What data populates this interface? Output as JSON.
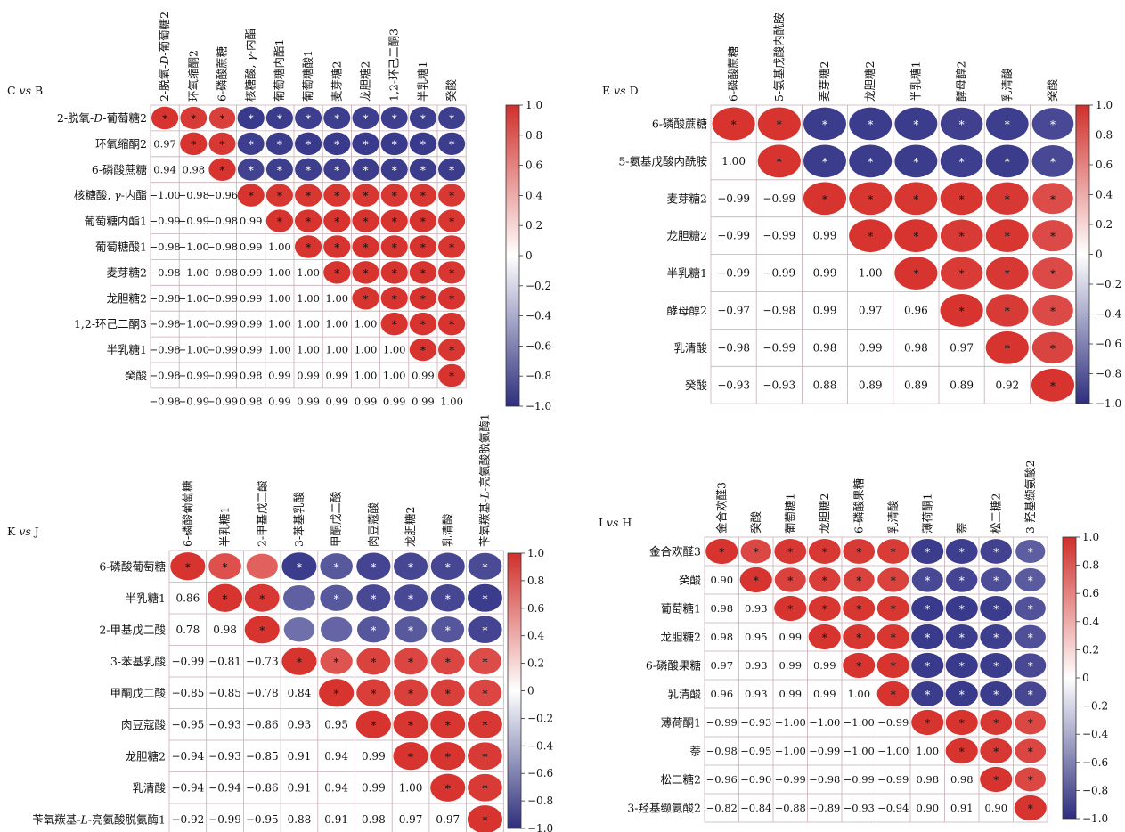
{
  "colors": {
    "positive": "#d7342f",
    "negative": "#3a3a8c",
    "grid": "#c9aeb4",
    "colorbar_stops": [
      "#d0302b",
      "#ffffff",
      "#2e2e7e"
    ]
  },
  "chart_data": [
    {
      "type": "heatmap",
      "title": "C vs B",
      "title_parts": [
        "C ",
        "vs",
        " B"
      ],
      "value_range": [
        -1.0,
        1.0
      ],
      "colorbar_ticks": [
        "1.0",
        "0.8",
        "0.6",
        "0.4",
        "0.2",
        "0",
        "−0.2",
        "−0.4",
        "−0.6",
        "−0.8",
        "−1.0"
      ],
      "labels": [
        {
          "parts": [
            {
              "t": "2-脱氧-"
            },
            {
              "t": "D",
              "i": true
            },
            {
              "t": "-葡萄糖2"
            }
          ]
        },
        {
          "parts": [
            {
              "t": "环氧缩酮2"
            }
          ]
        },
        {
          "parts": [
            {
              "t": "6-磷酸蔗糖"
            }
          ]
        },
        {
          "parts": [
            {
              "t": "核糖酸, "
            },
            {
              "t": "γ",
              "i": true
            },
            {
              "t": "-内酯"
            }
          ]
        },
        {
          "parts": [
            {
              "t": "葡萄糖内酯1"
            }
          ]
        },
        {
          "parts": [
            {
              "t": "葡萄糖酸1"
            }
          ]
        },
        {
          "parts": [
            {
              "t": "麦芽糖2"
            }
          ]
        },
        {
          "parts": [
            {
              "t": "龙胆糖2"
            }
          ]
        },
        {
          "parts": [
            {
              "t": "1,2-环己二酮3"
            }
          ]
        },
        {
          "parts": [
            {
              "t": "半乳糖1"
            }
          ]
        },
        {
          "parts": [
            {
              "t": "癸酸"
            }
          ]
        }
      ],
      "lower_labels": [
        [
          "0.97"
        ],
        [
          "0.94",
          "0.98"
        ],
        [
          "−1.00",
          "−0.98",
          "−0.96"
        ],
        [
          "−0.99",
          "−0.99",
          "−0.98",
          "0.99"
        ],
        [
          "−0.98",
          "−1.00",
          "−0.98",
          "0.99",
          "1.00"
        ],
        [
          "−0.98",
          "−1.00",
          "−0.98",
          "0.99",
          "1.00",
          "1.00"
        ],
        [
          "−0.98",
          "−1.00",
          "−0.99",
          "0.99",
          "1.00",
          "1.00",
          "1.00"
        ],
        [
          "−0.98",
          "−1.00",
          "−0.99",
          "0.99",
          "1.00",
          "1.00",
          "1.00",
          "1.00"
        ],
        [
          "−0.98",
          "−1.00",
          "−0.99",
          "0.99",
          "1.00",
          "1.00",
          "1.00",
          "1.00",
          "1.00"
        ],
        [
          "−0.98",
          "−0.99",
          "−0.99",
          "0.98",
          "0.99",
          "0.99",
          "0.99",
          "1.00",
          "1.00",
          "0.99"
        ],
        [
          "−0.98",
          "−0.99",
          "−0.99",
          "0.98",
          "0.99",
          "0.99",
          "0.99",
          "0.99",
          "0.99",
          "0.99",
          "1.00"
        ]
      ],
      "upper_star": [
        [
          true,
          true,
          true,
          true,
          true,
          true,
          true,
          true,
          true,
          true,
          true
        ],
        [
          true,
          true,
          true,
          true,
          true,
          true,
          true,
          true,
          true,
          true
        ],
        [
          true,
          true,
          true,
          true,
          true,
          true,
          true,
          true,
          true
        ],
        [
          true,
          true,
          true,
          true,
          true,
          true,
          true,
          true
        ],
        [
          true,
          true,
          true,
          true,
          true,
          true,
          true
        ],
        [
          true,
          true,
          true,
          true,
          true,
          true
        ],
        [
          true,
          true,
          true,
          true,
          true
        ],
        [
          true,
          true,
          true,
          true
        ],
        [
          true,
          true,
          true
        ],
        [
          true,
          true
        ],
        [
          true
        ]
      ]
    },
    {
      "type": "heatmap",
      "title": "E vs D",
      "title_parts": [
        "E ",
        "vs",
        " D"
      ],
      "value_range": [
        -1.0,
        1.0
      ],
      "colorbar_ticks": [
        "1.0",
        "0.8",
        "0.6",
        "0.4",
        "0.2",
        "0",
        "−0.2",
        "−0.4",
        "−0.6",
        "−0.8",
        "−1.0"
      ],
      "labels": [
        {
          "parts": [
            {
              "t": "6-磷酸蔗糖"
            }
          ]
        },
        {
          "parts": [
            {
              "t": "5-氨基戊酸内酰胺"
            }
          ]
        },
        {
          "parts": [
            {
              "t": "麦芽糖2"
            }
          ]
        },
        {
          "parts": [
            {
              "t": "龙胆糖2"
            }
          ]
        },
        {
          "parts": [
            {
              "t": "半乳糖1"
            }
          ]
        },
        {
          "parts": [
            {
              "t": "酵母醇2"
            }
          ]
        },
        {
          "parts": [
            {
              "t": "乳清酸"
            }
          ]
        },
        {
          "parts": [
            {
              "t": "癸酸"
            }
          ]
        }
      ],
      "lower_labels": [
        [
          "1.00"
        ],
        [
          "−0.99",
          "−0.99"
        ],
        [
          "−0.99",
          "−0.99",
          "0.99"
        ],
        [
          "−0.99",
          "−0.99",
          "0.99",
          "1.00"
        ],
        [
          "−0.97",
          "−0.98",
          "0.99",
          "0.97",
          "0.96"
        ],
        [
          "−0.98",
          "−0.99",
          "0.98",
          "0.99",
          "0.98",
          "0.97"
        ],
        [
          "−0.93",
          "−0.93",
          "0.88",
          "0.89",
          "0.89",
          "0.89",
          "0.92"
        ]
      ],
      "upper_star": [
        [
          true,
          true,
          true,
          true,
          true,
          true,
          true,
          true
        ],
        [
          true,
          true,
          true,
          true,
          true,
          true,
          true
        ],
        [
          true,
          true,
          true,
          true,
          true,
          true
        ],
        [
          true,
          true,
          true,
          true,
          true
        ],
        [
          true,
          true,
          true,
          true
        ],
        [
          true,
          true,
          true
        ],
        [
          true,
          true
        ],
        [
          true
        ]
      ]
    },
    {
      "type": "heatmap",
      "title": "K vs J",
      "title_parts": [
        "K ",
        "vs",
        " J"
      ],
      "value_range": [
        -1.0,
        1.0
      ],
      "colorbar_ticks": [
        "1.0",
        "0.8",
        "0.6",
        "0.4",
        "0.2",
        "0",
        "−0.2",
        "−0.4",
        "−0.6",
        "−0.8",
        "−1.0"
      ],
      "labels": [
        {
          "parts": [
            {
              "t": "6-磷酸葡萄糖"
            }
          ]
        },
        {
          "parts": [
            {
              "t": "半乳糖1"
            }
          ]
        },
        {
          "parts": [
            {
              "t": "2-甲基戊二酸"
            }
          ]
        },
        {
          "parts": [
            {
              "t": "3-苯基乳酸"
            }
          ]
        },
        {
          "parts": [
            {
              "t": "甲酮戊二酸"
            }
          ]
        },
        {
          "parts": [
            {
              "t": "肉豆蔻酸"
            }
          ]
        },
        {
          "parts": [
            {
              "t": "龙胆糖2"
            }
          ]
        },
        {
          "parts": [
            {
              "t": "乳清酸"
            }
          ]
        },
        {
          "parts": [
            {
              "t": "苄氧羰基-"
            },
            {
              "t": "L",
              "i": true
            },
            {
              "t": "-亮氨酸脱氨酶1"
            }
          ]
        }
      ],
      "lower_labels": [
        [
          "0.86"
        ],
        [
          "0.78",
          "0.98"
        ],
        [
          "−0.99",
          "−0.81",
          "−0.73"
        ],
        [
          "−0.85",
          "−0.85",
          "−0.78",
          "0.84"
        ],
        [
          "−0.95",
          "−0.93",
          "−0.86",
          "0.93",
          "0.95"
        ],
        [
          "−0.94",
          "−0.93",
          "−0.85",
          "0.91",
          "0.94",
          "0.99"
        ],
        [
          "−0.94",
          "−0.94",
          "−0.86",
          "0.91",
          "0.94",
          "0.99",
          "1.00"
        ],
        [
          "−0.92",
          "−0.99",
          "−0.95",
          "0.88",
          "0.91",
          "0.98",
          "0.97",
          "0.97"
        ]
      ],
      "upper_star": [
        [
          true,
          true,
          false,
          true,
          true,
          true,
          true,
          true,
          true
        ],
        [
          true,
          true,
          false,
          true,
          true,
          true,
          true,
          true
        ],
        [
          true,
          false,
          false,
          true,
          true,
          true,
          true
        ],
        [
          true,
          true,
          true,
          true,
          true,
          true
        ],
        [
          true,
          true,
          true,
          true,
          true
        ],
        [
          true,
          true,
          true,
          true
        ],
        [
          true,
          true,
          true
        ],
        [
          true,
          true
        ],
        [
          true
        ]
      ]
    },
    {
      "type": "heatmap",
      "title": "I vs H",
      "title_parts": [
        "I ",
        "vs",
        " H"
      ],
      "value_range": [
        -1.0,
        1.0
      ],
      "colorbar_ticks": [
        "1.0",
        "0.8",
        "0.6",
        "0.4",
        "0.2",
        "0",
        "−0.2",
        "−0.4",
        "−0.6",
        "−0.8",
        "−1.0"
      ],
      "labels": [
        {
          "parts": [
            {
              "t": "金合欢醛3"
            }
          ]
        },
        {
          "parts": [
            {
              "t": "癸酸"
            }
          ]
        },
        {
          "parts": [
            {
              "t": "葡萄糖1"
            }
          ]
        },
        {
          "parts": [
            {
              "t": "龙胆糖2"
            }
          ]
        },
        {
          "parts": [
            {
              "t": "6-磷酸果糖"
            }
          ]
        },
        {
          "parts": [
            {
              "t": "乳清酸"
            }
          ]
        },
        {
          "parts": [
            {
              "t": "薄荷酮1"
            }
          ]
        },
        {
          "parts": [
            {
              "t": "萘"
            }
          ]
        },
        {
          "parts": [
            {
              "t": "松二糖2"
            }
          ]
        },
        {
          "parts": [
            {
              "t": "3-羟基缬氨酸2"
            }
          ]
        }
      ],
      "lower_labels": [
        [
          "0.90"
        ],
        [
          "0.98",
          "0.93"
        ],
        [
          "0.98",
          "0.95",
          "0.99"
        ],
        [
          "0.97",
          "0.93",
          "0.99",
          "0.99"
        ],
        [
          "0.96",
          "0.93",
          "0.99",
          "0.99",
          "1.00"
        ],
        [
          "−0.99",
          "−0.93",
          "−1.00",
          "−1.00",
          "−1.00",
          "−0.99"
        ],
        [
          "−0.98",
          "−0.95",
          "−1.00",
          "−0.99",
          "−1.00",
          "−1.00",
          "1.00"
        ],
        [
          "−0.96",
          "−0.90",
          "−0.99",
          "−0.98",
          "−0.99",
          "−0.99",
          "0.98",
          "0.98"
        ],
        [
          "−0.82",
          "−0.84",
          "−0.88",
          "−0.89",
          "−0.93",
          "−0.94",
          "0.90",
          "0.91",
          "0.90"
        ]
      ],
      "upper_star": [
        [
          true,
          true,
          true,
          true,
          true,
          true,
          true,
          true,
          true,
          true
        ],
        [
          true,
          true,
          true,
          true,
          true,
          true,
          true,
          true,
          true
        ],
        [
          true,
          true,
          true,
          true,
          true,
          true,
          true,
          true
        ],
        [
          true,
          true,
          true,
          true,
          true,
          true,
          true
        ],
        [
          true,
          true,
          true,
          true,
          true,
          true
        ],
        [
          true,
          true,
          true,
          true,
          true
        ],
        [
          true,
          true,
          true,
          true
        ],
        [
          true,
          true,
          true
        ],
        [
          true,
          true
        ],
        [
          true
        ]
      ]
    }
  ]
}
